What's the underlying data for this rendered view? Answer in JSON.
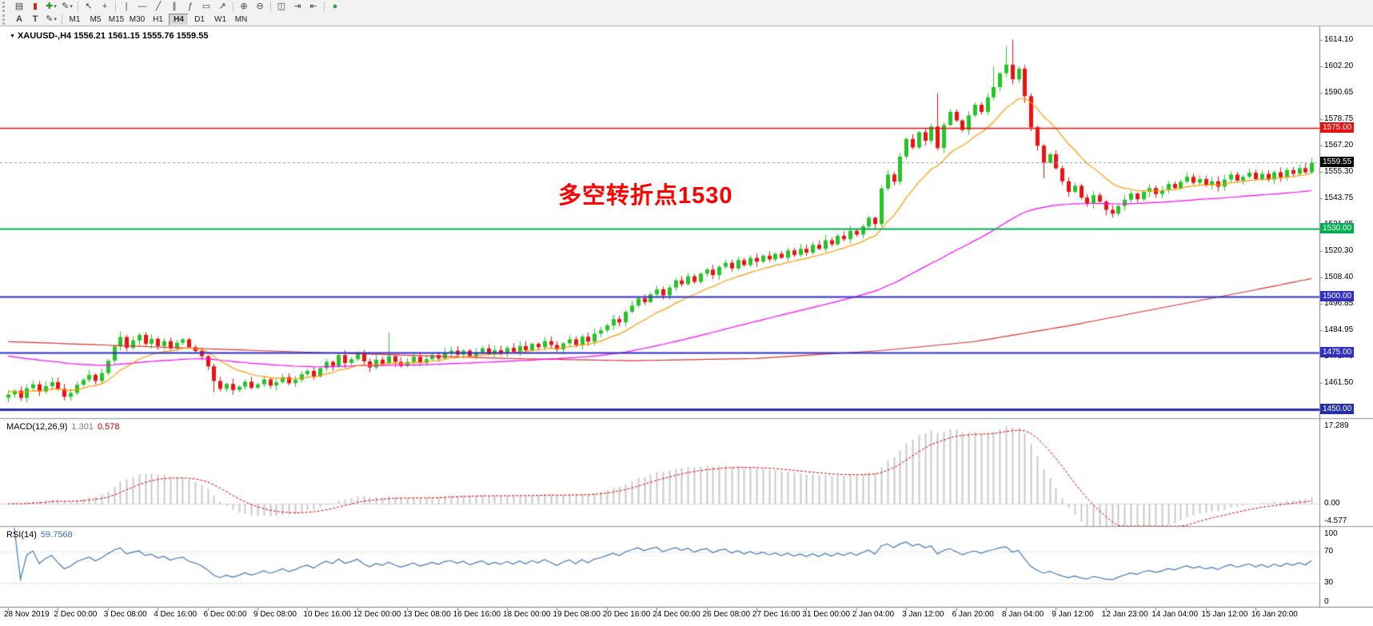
{
  "toolbar": {
    "row1": [
      {
        "type": "grip"
      },
      {
        "type": "btn",
        "name": "chart-window-icon",
        "glyph": "▤"
      },
      {
        "type": "btn",
        "name": "bar-chart-icon",
        "glyph": "▮",
        "color": "#bb3333"
      },
      {
        "type": "btn",
        "name": "new-order-icon",
        "glyph": "✚",
        "color": "#1e9e1e",
        "caret": true
      },
      {
        "type": "btn",
        "name": "templates-icon",
        "glyph": "✎",
        "caret": true
      },
      {
        "type": "sep"
      },
      {
        "type": "btn",
        "name": "cursor-icon",
        "glyph": "↖"
      },
      {
        "type": "btn",
        "name": "crosshair-icon",
        "glyph": "+"
      },
      {
        "type": "sep"
      },
      {
        "type": "btn",
        "name": "vertical-line-icon",
        "glyph": "|"
      },
      {
        "type": "btn",
        "name": "horizontal-line-icon",
        "glyph": "—"
      },
      {
        "type": "btn",
        "name": "trendline-icon",
        "glyph": "╱"
      },
      {
        "type": "btn",
        "name": "channel-icon",
        "glyph": "∥"
      },
      {
        "type": "btn",
        "name": "fibonacci-icon",
        "glyph": "ƒ"
      },
      {
        "type": "btn",
        "name": "shapes-icon",
        "glyph": "▭"
      },
      {
        "type": "btn",
        "name": "arrows-icon",
        "glyph": "↗"
      },
      {
        "type": "sep"
      },
      {
        "type": "btn",
        "name": "zoom-in-icon",
        "glyph": "⊕"
      },
      {
        "type": "btn",
        "name": "zoom-out-icon",
        "glyph": "⊖"
      },
      {
        "type": "sep"
      },
      {
        "type": "btn",
        "name": "tile-windows-icon",
        "glyph": "◫"
      },
      {
        "type": "btn",
        "name": "auto-scroll-icon",
        "glyph": "⇥"
      },
      {
        "type": "btn",
        "name": "chart-shift-icon",
        "glyph": "⇤"
      },
      {
        "type": "sep"
      },
      {
        "type": "btn",
        "name": "expert-advisor-icon",
        "glyph": "●",
        "color": "#2fa52f"
      }
    ],
    "row2_tools": [
      {
        "type": "grip"
      },
      {
        "type": "btn",
        "name": "text-tool-icon",
        "glyph": "A",
        "letter": true
      },
      {
        "type": "btn",
        "name": "label-tool-icon",
        "glyph": "T",
        "letter": true
      },
      {
        "type": "btn",
        "name": "draw-tool-icon",
        "glyph": "✎",
        "caret": true
      },
      {
        "type": "sep"
      }
    ],
    "timeframes": [
      "M1",
      "M5",
      "M15",
      "M30",
      "H1",
      "H4",
      "D1",
      "W1",
      "MN"
    ],
    "active_timeframe": "H4"
  },
  "chart": {
    "title": "XAUUSD-,H4 1556.21 1561.15 1555.76 1559.55",
    "symbol": "XAUUSD-",
    "period": "H4",
    "open": "1556.21",
    "high": "1561.15",
    "low": "1555.76",
    "close": "1559.55",
    "annotation": {
      "text": "多空转折点1530",
      "color": "#ff0000"
    }
  },
  "macd_panel": {
    "name": "MACD(12,26,9)",
    "main_value": "1.301",
    "signal_value": "0.578"
  },
  "rsi_panel": {
    "name": "RSI(14)",
    "value": "59.7568"
  },
  "chart_data": {
    "type": "candlestick",
    "symbol": "XAUUSD-",
    "timeframe": "H4",
    "y_range": [
      1446,
      1620
    ],
    "y_ticks": [
      1614.1,
      1602.2,
      1590.65,
      1578.75,
      1567.2,
      1555.3,
      1543.75,
      1531.85,
      1520.3,
      1508.4,
      1496.85,
      1484.95,
      1473.4,
      1461.5,
      1449.95
    ],
    "x_label_step": 8,
    "x_labels": [
      "28 Nov 2019",
      "2 Dec 00:00",
      "3 Dec 08:00",
      "4 Dec 16:00",
      "6 Dec 00:00",
      "9 Dec 08:00",
      "10 Dec 16:00",
      "12 Dec 00:00",
      "13 Dec 08:00",
      "16 Dec 16:00",
      "18 Dec 00:00",
      "19 Dec 08:00",
      "20 Dec 16:00",
      "24 Dec 00:00",
      "26 Dec 08:00",
      "27 Dec 16:00",
      "31 Dec 00:00",
      "2 Jan 04:00",
      "3 Jan 12:00",
      "6 Jan 20:00",
      "8 Jan 04:00",
      "9 Jan 12:00",
      "12 Jan 23:00",
      "14 Jan 04:00",
      "15 Jan 12:00",
      "16 Jan 20:00"
    ],
    "first_open": 1455.0,
    "closes": [
      1456.5,
      1458.2,
      1455.0,
      1459.3,
      1461.0,
      1457.8,
      1460.2,
      1462.0,
      1459.0,
      1455.5,
      1457.2,
      1460.8,
      1463.0,
      1465.2,
      1462.5,
      1466.0,
      1471.5,
      1477.8,
      1482.0,
      1477.2,
      1480.5,
      1483.0,
      1479.0,
      1481.2,
      1478.0,
      1480.2,
      1477.0,
      1479.5,
      1481.0,
      1477.5,
      1475.8,
      1473.5,
      1469.0,
      1462.5,
      1459.0,
      1461.2,
      1458.5,
      1460.0,
      1462.2,
      1459.5,
      1461.0,
      1463.2,
      1460.5,
      1462.0,
      1464.2,
      1461.5,
      1463.0,
      1465.5,
      1467.0,
      1464.5,
      1468.2,
      1471.0,
      1469.2,
      1474.0,
      1470.5,
      1472.2,
      1475.0,
      1471.2,
      1468.5,
      1472.0,
      1470.2,
      1473.5,
      1471.0,
      1469.2,
      1471.0,
      1473.2,
      1470.5,
      1472.2,
      1474.0,
      1472.5,
      1475.2,
      1476.0,
      1474.2,
      1476.0,
      1473.5,
      1475.2,
      1477.0,
      1474.5,
      1476.2,
      1475.0,
      1477.2,
      1475.5,
      1478.0,
      1476.2,
      1479.0,
      1477.5,
      1480.2,
      1478.5,
      1476.5,
      1479.2,
      1481.0,
      1478.5,
      1482.2,
      1480.0,
      1483.5,
      1485.0,
      1487.2,
      1490.0,
      1488.5,
      1493.2,
      1496.0,
      1499.2,
      1497.5,
      1501.0,
      1503.2,
      1500.5,
      1504.0,
      1507.2,
      1505.5,
      1509.0,
      1506.5,
      1510.2,
      1512.0,
      1509.5,
      1513.2,
      1515.0,
      1512.5,
      1516.2,
      1514.0,
      1517.2,
      1515.5,
      1518.2,
      1516.5,
      1519.0,
      1517.2,
      1520.5,
      1518.5,
      1521.2,
      1519.5,
      1523.0,
      1521.2,
      1525.0,
      1523.2,
      1527.0,
      1525.5,
      1529.2,
      1527.5,
      1531.2,
      1535.0,
      1532.2,
      1548.0,
      1554.2,
      1551.0,
      1562.2,
      1570.0,
      1566.2,
      1573.0,
      1569.2,
      1575.5,
      1566.0,
      1576.2,
      1582.0,
      1578.2,
      1574.0,
      1580.5,
      1585.2,
      1582.0,
      1588.5,
      1593.0,
      1599.2,
      1603.0,
      1596.5,
      1601.2,
      1589.0,
      1575.2,
      1567.0,
      1559.5,
      1563.2,
      1557.0,
      1551.2,
      1546.5,
      1549.2,
      1544.0,
      1541.2,
      1545.0,
      1542.2,
      1538.5,
      1536.8,
      1540.2,
      1543.0,
      1545.8,
      1543.2,
      1546.5,
      1548.2,
      1545.5,
      1547.2,
      1550.0,
      1548.2,
      1551.0,
      1553.2,
      1550.5,
      1552.2,
      1549.5,
      1551.2,
      1548.8,
      1552.0,
      1554.2,
      1551.5,
      1553.2,
      1555.0,
      1552.2,
      1554.5,
      1552.0,
      1555.2,
      1553.0,
      1556.2,
      1554.5,
      1557.0,
      1555.2,
      1559.55
    ],
    "wick_overrides": {
      "2": {
        "low": 1453.5
      },
      "9": {
        "low": 1453.8
      },
      "18": {
        "high": 1484.5
      },
      "21": {
        "high": 1484.0
      },
      "33": {
        "low": 1457.5
      },
      "61": {
        "high": 1484.0
      },
      "149": {
        "high": 1590.3
      },
      "158": {
        "high": 1602.0
      },
      "160": {
        "high": 1611.0
      },
      "161": {
        "high": 1614.1
      },
      "163": {
        "low": 1586.0
      },
      "166": {
        "low": 1552.5
      },
      "176": {
        "low": 1536.0
      },
      "177": {
        "low": 1535.0
      }
    },
    "hlines": [
      {
        "price": 1575.0,
        "color": "#e81010",
        "width": 1.5
      },
      {
        "price": 1530.0,
        "color": "#00af50",
        "width": 2
      },
      {
        "price": 1500.0,
        "color": "#2e2ec8",
        "width": 2
      },
      {
        "price": 1475.0,
        "color": "#2e2ec8",
        "width": 2
      },
      {
        "price": 1450.0,
        "color": "#2430a8",
        "width": 3
      }
    ],
    "bid": {
      "price": 1559.55,
      "label": "1559.55",
      "tag_bg": "#000000",
      "line_color": "#8896aa"
    },
    "ma": {
      "fast": {
        "period": 13,
        "seed": 1458,
        "color": "#ff9900"
      },
      "mid": {
        "period": 80,
        "seed": 1474,
        "color": "#ff00ff"
      },
      "slow": {
        "color": "#e03030",
        "path": [
          [
            0,
            1480
          ],
          [
            40,
            1476
          ],
          [
            80,
            1472.5
          ],
          [
            100,
            1471.5
          ],
          [
            120,
            1472.5
          ],
          [
            140,
            1476
          ],
          [
            155,
            1480
          ],
          [
            170,
            1487
          ],
          [
            185,
            1495
          ],
          [
            200,
            1503
          ],
          [
            209,
            1508
          ]
        ]
      }
    },
    "colors": {
      "up": "#27c427",
      "down": "#ee1111",
      "macd_hist": "#c8c8c8",
      "macd_signal": "#dd0000",
      "rsi": "#4076bf"
    },
    "indicators": {
      "macd": {
        "params": "12,26,9",
        "range": [
          -4.577,
          17.289
        ],
        "ticks": [
          {
            "label": "17.289",
            "value": 17.289
          },
          {
            "label": "0.00",
            "value": 0
          },
          {
            "label": "-4.577",
            "value": -4.577
          }
        ]
      },
      "rsi": {
        "period": 14,
        "range": [
          0,
          100
        ],
        "dotted_levels": [
          70,
          30
        ],
        "ticks": [
          {
            "label": "100",
            "value": 100
          },
          {
            "label": "70",
            "value": 70
          },
          {
            "label": "30",
            "value": 30
          },
          {
            "label": "0",
            "value": 0
          }
        ]
      }
    }
  }
}
